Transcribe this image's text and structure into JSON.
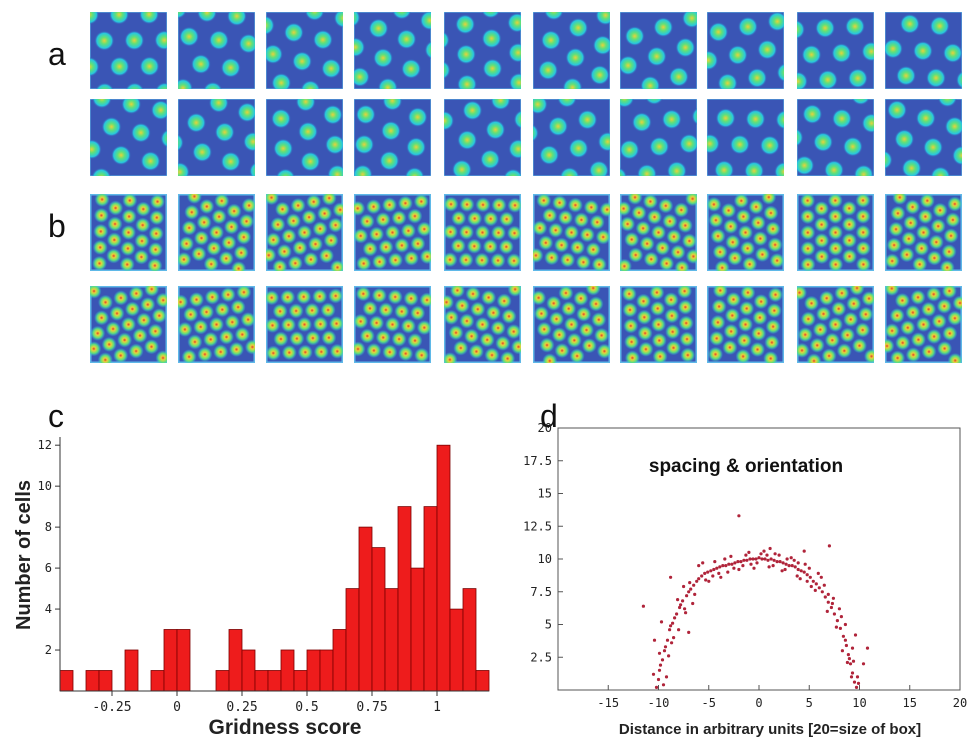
{
  "panel_labels": {
    "a": "a",
    "b": "b",
    "c": "c",
    "d": "d"
  },
  "colors": {
    "map_background": "#3a55b5",
    "field_outer": "#27c8e0",
    "field_mid": "#5fe07a",
    "field_peak": "#e8d23a",
    "hot": "#e33a2a",
    "bar_fill": "#ee1c1c",
    "scatter_point": "#b0243a"
  },
  "chart_data": [
    {
      "type": "bar",
      "xlabel": "Gridness score",
      "ylabel": "Number of cells",
      "xlim": [
        -0.45,
        1.2
      ],
      "ylim": [
        0,
        12.4
      ],
      "bin_width": 0.05,
      "x_ticks": [
        {
          "value": -0.25,
          "label": "-0.25"
        },
        {
          "value": 0,
          "label": "0"
        },
        {
          "value": 0.25,
          "label": "0.25"
        },
        {
          "value": 0.5,
          "label": "0.5"
        },
        {
          "value": 0.75,
          "label": "0.75"
        },
        {
          "value": 1,
          "label": "1"
        }
      ],
      "y_ticks": [
        {
          "value": 2,
          "label": "2"
        },
        {
          "value": 4,
          "label": "4"
        },
        {
          "value": 6,
          "label": "6"
        },
        {
          "value": 8,
          "label": "8"
        },
        {
          "value": 10,
          "label": "10"
        },
        {
          "value": 12,
          "label": "12"
        }
      ],
      "bins": [
        {
          "x": -0.425,
          "count": 1
        },
        {
          "x": -0.325,
          "count": 1
        },
        {
          "x": -0.275,
          "count": 1
        },
        {
          "x": -0.175,
          "count": 2
        },
        {
          "x": -0.075,
          "count": 1
        },
        {
          "x": -0.025,
          "count": 3
        },
        {
          "x": 0.025,
          "count": 3
        },
        {
          "x": 0.175,
          "count": 1
        },
        {
          "x": 0.225,
          "count": 3
        },
        {
          "x": 0.275,
          "count": 2
        },
        {
          "x": 0.325,
          "count": 1
        },
        {
          "x": 0.375,
          "count": 1
        },
        {
          "x": 0.425,
          "count": 2
        },
        {
          "x": 0.475,
          "count": 1
        },
        {
          "x": 0.525,
          "count": 2
        },
        {
          "x": 0.575,
          "count": 2
        },
        {
          "x": 0.625,
          "count": 3
        },
        {
          "x": 0.675,
          "count": 5
        },
        {
          "x": 0.725,
          "count": 8
        },
        {
          "x": 0.775,
          "count": 7
        },
        {
          "x": 0.825,
          "count": 5
        },
        {
          "x": 0.875,
          "count": 9
        },
        {
          "x": 0.925,
          "count": 6
        },
        {
          "x": 0.975,
          "count": 9
        },
        {
          "x": 1.025,
          "count": 12
        },
        {
          "x": 1.075,
          "count": 4
        },
        {
          "x": 1.125,
          "count": 5
        },
        {
          "x": 1.175,
          "count": 1
        }
      ]
    },
    {
      "type": "scatter",
      "title": "spacing & orientation",
      "xlabel": "Distance in arbitrary units [20=size of box]",
      "ylabel": "",
      "xlim": [
        -20,
        20
      ],
      "ylim": [
        0,
        20
      ],
      "x_ticks": [
        {
          "value": -15,
          "label": "-15"
        },
        {
          "value": -10,
          "label": "-10"
        },
        {
          "value": -5,
          "label": "-5"
        },
        {
          "value": 0,
          "label": "0"
        },
        {
          "value": 5,
          "label": "5"
        },
        {
          "value": 10,
          "label": "10"
        },
        {
          "value": 15,
          "label": "15"
        },
        {
          "value": 20,
          "label": "20"
        }
      ],
      "y_ticks": [
        {
          "value": 2.5,
          "label": "2.5"
        },
        {
          "value": 5,
          "label": "5"
        },
        {
          "value": 7.5,
          "label": "7.5"
        },
        {
          "value": 10,
          "label": "10"
        },
        {
          "value": 12.5,
          "label": "12.5"
        },
        {
          "value": 15,
          "label": "15"
        },
        {
          "value": 17.5,
          "label": "17.5"
        },
        {
          "value": 20,
          "label": "20"
        }
      ],
      "points": [
        [
          -10.2,
          0.2
        ],
        [
          -10.0,
          0.8
        ],
        [
          -9.9,
          1.5
        ],
        [
          -9.6,
          2.3
        ],
        [
          -9.8,
          1.9
        ],
        [
          -9.4,
          3.0
        ],
        [
          -9.1,
          3.8
        ],
        [
          -9.3,
          3.3
        ],
        [
          -8.9,
          4.6
        ],
        [
          -8.6,
          5.1
        ],
        [
          -8.8,
          4.9
        ],
        [
          -8.2,
          5.8
        ],
        [
          -8.4,
          5.5
        ],
        [
          -7.9,
          6.3
        ],
        [
          -7.6,
          6.8
        ],
        [
          -7.8,
          6.5
        ],
        [
          -7.2,
          7.2
        ],
        [
          -7.0,
          7.5
        ],
        [
          -6.8,
          7.7
        ],
        [
          -6.5,
          8.0
        ],
        [
          -6.2,
          8.3
        ],
        [
          -6.0,
          8.5
        ],
        [
          -5.7,
          8.7
        ],
        [
          -5.4,
          8.9
        ],
        [
          -5.1,
          9.0
        ],
        [
          -4.8,
          9.1
        ],
        [
          -4.5,
          9.2
        ],
        [
          -4.2,
          9.3
        ],
        [
          -3.9,
          9.4
        ],
        [
          -3.6,
          9.5
        ],
        [
          -3.3,
          9.5
        ],
        [
          -3.0,
          9.6
        ],
        [
          -2.7,
          9.6
        ],
        [
          -2.4,
          9.7
        ],
        [
          -2.1,
          9.8
        ],
        [
          -1.8,
          9.8
        ],
        [
          -1.5,
          9.9
        ],
        [
          -1.2,
          9.9
        ],
        [
          -0.9,
          10.0
        ],
        [
          -0.6,
          10.0
        ],
        [
          -0.3,
          10.0
        ],
        [
          0.0,
          10.1
        ],
        [
          0.3,
          10.0
        ],
        [
          0.6,
          10.0
        ],
        [
          0.9,
          9.9
        ],
        [
          1.2,
          10.0
        ],
        [
          1.5,
          9.9
        ],
        [
          1.8,
          9.8
        ],
        [
          2.1,
          9.8
        ],
        [
          2.4,
          9.7
        ],
        [
          2.7,
          9.6
        ],
        [
          3.0,
          9.5
        ],
        [
          3.3,
          9.5
        ],
        [
          3.6,
          9.4
        ],
        [
          3.9,
          9.2
        ],
        [
          4.2,
          9.1
        ],
        [
          4.5,
          9.0
        ],
        [
          4.8,
          8.8
        ],
        [
          5.1,
          8.6
        ],
        [
          5.4,
          8.3
        ],
        [
          5.7,
          8.1
        ],
        [
          6.0,
          7.8
        ],
        [
          6.3,
          7.5
        ],
        [
          6.6,
          7.1
        ],
        [
          6.9,
          6.7
        ],
        [
          7.2,
          6.3
        ],
        [
          7.5,
          5.8
        ],
        [
          7.8,
          5.3
        ],
        [
          8.1,
          4.7
        ],
        [
          8.4,
          4.1
        ],
        [
          8.7,
          3.4
        ],
        [
          8.9,
          2.7
        ],
        [
          9.1,
          2.0
        ],
        [
          9.3,
          1.3
        ],
        [
          9.5,
          0.6
        ],
        [
          9.7,
          0.2
        ],
        [
          9.2,
          1.0
        ],
        [
          9.0,
          2.4
        ],
        [
          8.6,
          3.8
        ],
        [
          -9.5,
          0.4
        ],
        [
          -10.5,
          1.2
        ],
        [
          -9.9,
          2.8
        ],
        [
          -9.0,
          2.6
        ],
        [
          -8.5,
          4.0
        ],
        [
          -8.0,
          4.6
        ],
        [
          -7.3,
          5.9
        ],
        [
          -7.5,
          7.9
        ],
        [
          -6.6,
          6.6
        ],
        [
          -6.0,
          9.5
        ],
        [
          -5.0,
          8.3
        ],
        [
          -4.4,
          9.8
        ],
        [
          -3.8,
          8.6
        ],
        [
          -2.8,
          10.2
        ],
        [
          -2.0,
          9.2
        ],
        [
          -1.0,
          10.5
        ],
        [
          -0.5,
          9.3
        ],
        [
          0.5,
          10.6
        ],
        [
          1.0,
          9.4
        ],
        [
          1.6,
          10.4
        ],
        [
          2.3,
          9.1
        ],
        [
          3.2,
          10.1
        ],
        [
          3.8,
          8.7
        ],
        [
          4.6,
          9.6
        ],
        [
          5.2,
          7.9
        ],
        [
          6.2,
          8.6
        ],
        [
          6.8,
          6.0
        ],
        [
          7.4,
          7.0
        ],
        [
          8.0,
          6.2
        ],
        [
          8.6,
          5.0
        ],
        [
          9.4,
          2.2
        ],
        [
          9.8,
          1.0
        ],
        [
          10.4,
          2.0
        ],
        [
          10.8,
          3.2
        ],
        [
          9.6,
          4.2
        ],
        [
          8.3,
          3.0
        ],
        [
          -11.5,
          6.4
        ],
        [
          -8.8,
          8.6
        ],
        [
          -7.0,
          4.4
        ],
        [
          7.0,
          11.0
        ],
        [
          -10.4,
          3.8
        ],
        [
          -2.0,
          13.3
        ],
        [
          4.5,
          10.6
        ],
        [
          -9.7,
          5.2
        ],
        [
          -6.4,
          7.3
        ],
        [
          -5.6,
          9.7
        ],
        [
          -4.0,
          8.9
        ],
        [
          -3.4,
          10.0
        ],
        [
          -1.6,
          9.5
        ],
        [
          -0.2,
          9.7
        ],
        [
          0.8,
          10.3
        ],
        [
          1.4,
          9.5
        ],
        [
          2.0,
          10.3
        ],
        [
          2.6,
          9.2
        ],
        [
          3.5,
          9.9
        ],
        [
          4.1,
          8.5
        ],
        [
          5.0,
          9.3
        ],
        [
          5.6,
          7.6
        ],
        [
          6.5,
          8.0
        ],
        [
          7.7,
          4.8
        ],
        [
          8.2,
          5.6
        ],
        [
          8.8,
          2.1
        ],
        [
          9.3,
          3.2
        ],
        [
          9.9,
          0.5
        ],
        [
          -9.2,
          1.0
        ],
        [
          -8.7,
          3.6
        ],
        [
          -8.1,
          6.9
        ],
        [
          -7.4,
          6.2
        ],
        [
          -6.9,
          8.2
        ],
        [
          -5.3,
          8.4
        ],
        [
          -4.6,
          8.7
        ],
        [
          -3.1,
          9.0
        ],
        [
          -2.5,
          9.3
        ],
        [
          -1.3,
          10.3
        ],
        [
          -0.8,
          9.6
        ],
        [
          0.2,
          10.4
        ],
        [
          1.1,
          10.8
        ],
        [
          2.8,
          10.0
        ],
        [
          3.9,
          9.7
        ],
        [
          4.8,
          8.3
        ],
        [
          5.9,
          8.9
        ],
        [
          6.9,
          7.3
        ],
        [
          7.3,
          6.6
        ]
      ]
    }
  ]
}
